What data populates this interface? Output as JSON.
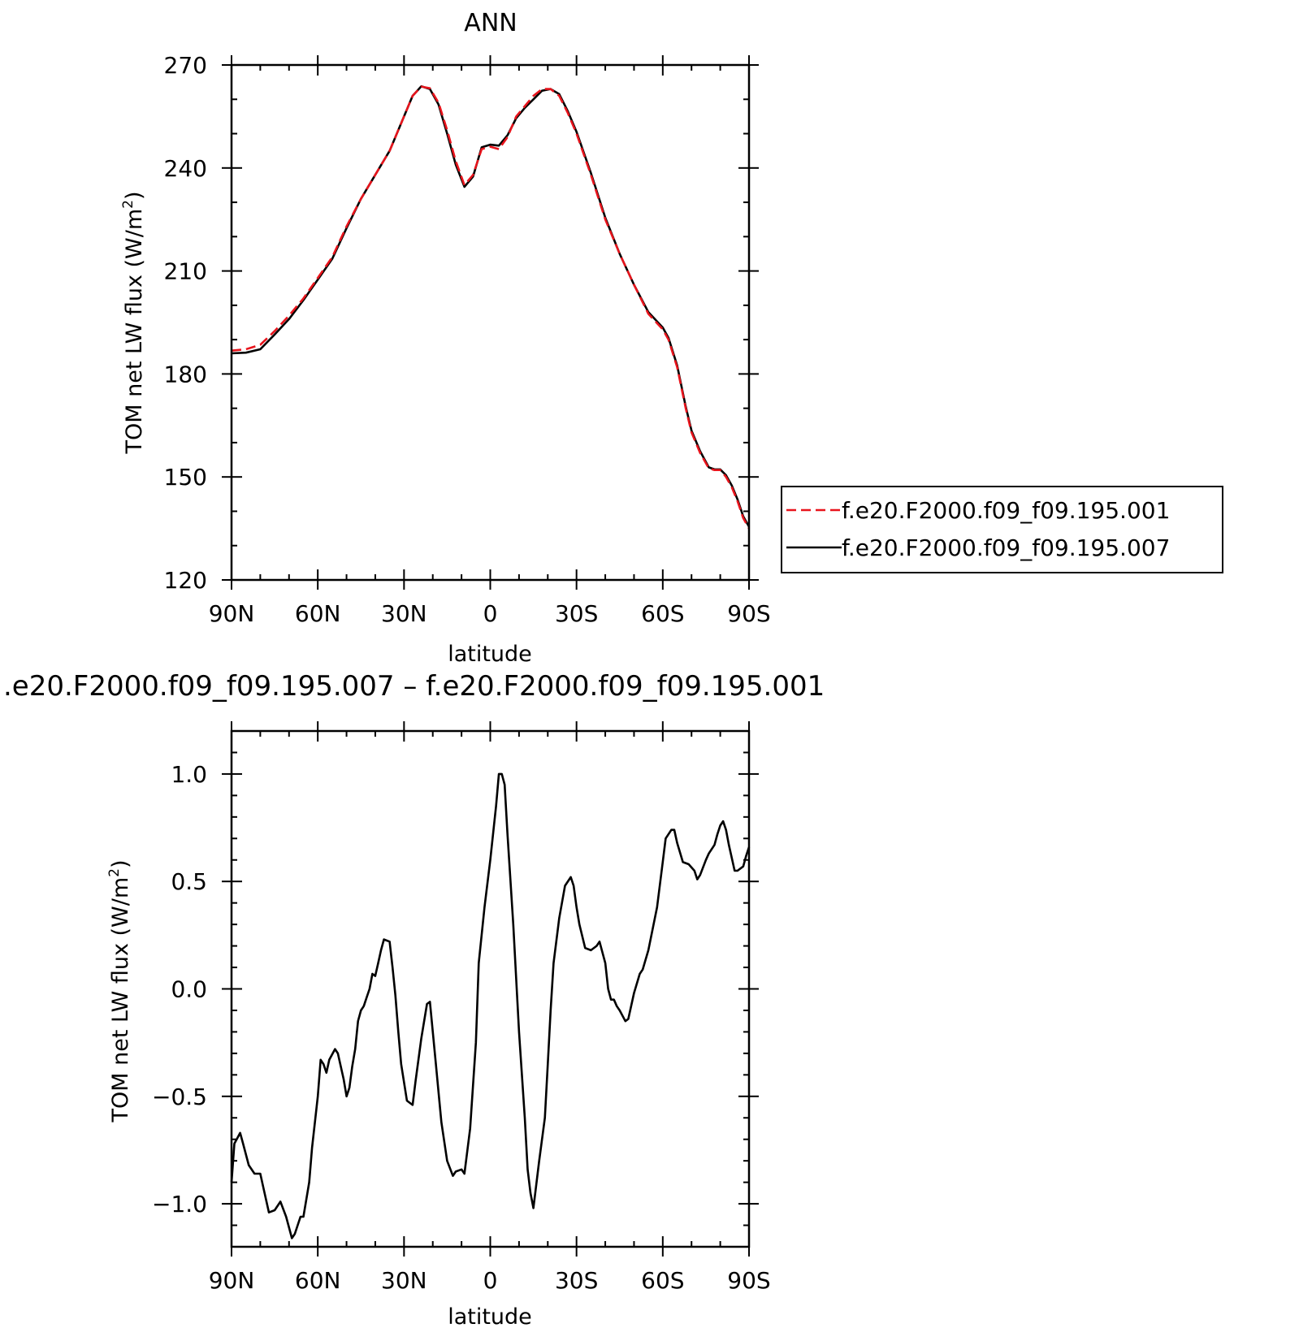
{
  "chart_data": [
    {
      "type": "line",
      "title": "ANN",
      "xlabel": "latitude",
      "ylabel": "TOM net LW flux (W/m",
      "ylabel_sup": "2",
      "ylabel_close": ")",
      "xlim": [
        90,
        -90
      ],
      "ylim": [
        120,
        270
      ],
      "xticks": [
        90,
        60,
        30,
        0,
        -30,
        -60,
        -90
      ],
      "xtick_labels": [
        "90N",
        "60N",
        "30N",
        "0",
        "30S",
        "60S",
        "90S"
      ],
      "yticks": [
        120,
        150,
        180,
        210,
        240,
        270
      ],
      "ytick_labels": [
        "120",
        "150",
        "180",
        "210",
        "240",
        "270"
      ],
      "legend_position": "right",
      "grid": false,
      "series": [
        {
          "name": "f.e20.F2000.f09_f09.195.001",
          "color": "#e8141c",
          "dash": true,
          "x": [
            90,
            85,
            80,
            75,
            70,
            65,
            60,
            55,
            50,
            45,
            40,
            35,
            30,
            27,
            24,
            21,
            18,
            15,
            12,
            9,
            6,
            3,
            0,
            -3,
            -6,
            -9,
            -12,
            -15,
            -18,
            -21,
            -24,
            -27,
            -30,
            -35,
            -40,
            -45,
            -50,
            -55,
            -60,
            -62,
            -65,
            -68,
            -70,
            -73,
            -76,
            -78,
            -80,
            -82,
            -84,
            -86,
            -88,
            -90
          ],
          "y": [
            186.8,
            187.2,
            188.5,
            192.5,
            197,
            202,
            208,
            214,
            223,
            231,
            238,
            245,
            255,
            261,
            263.7,
            263.2,
            259,
            251,
            242,
            235,
            238,
            245.5,
            246.2,
            245.5,
            249,
            255,
            258,
            261,
            263,
            263,
            261,
            256,
            250,
            238,
            225,
            215,
            206,
            197.5,
            193,
            190,
            182,
            170,
            163,
            157,
            152.5,
            152,
            152,
            150,
            147,
            143,
            138,
            135
          ]
        },
        {
          "name": "f.e20.F2000.f09_f09.195.007",
          "color": "#000000",
          "dash": false,
          "x": [
            90,
            85,
            80,
            75,
            70,
            65,
            60,
            55,
            50,
            45,
            40,
            35,
            30,
            27,
            24,
            21,
            18,
            15,
            12,
            9,
            6,
            3,
            0,
            -3,
            -6,
            -9,
            -12,
            -15,
            -18,
            -21,
            -24,
            -27,
            -30,
            -35,
            -40,
            -45,
            -50,
            -55,
            -60,
            -62,
            -65,
            -68,
            -70,
            -73,
            -76,
            -78,
            -80,
            -82,
            -84,
            -86,
            -88,
            -90
          ],
          "y": [
            186,
            186.2,
            187.2,
            191.5,
            196,
            201.5,
            207.5,
            213.5,
            222.5,
            231,
            238,
            245,
            255,
            261,
            263.8,
            263,
            258.5,
            250,
            241,
            234.5,
            237.5,
            246,
            246.8,
            246.5,
            249.5,
            254.5,
            257.5,
            260,
            262.5,
            263,
            261.5,
            256.5,
            250.5,
            238.5,
            225.5,
            215,
            206,
            198,
            193.5,
            190.5,
            182.5,
            170.5,
            163.5,
            157.5,
            152.8,
            152.2,
            152.2,
            150.5,
            147.5,
            143.5,
            138.5,
            135.5
          ]
        }
      ]
    },
    {
      "type": "line",
      "title": ".e20.F2000.f09_f09.195.007 – f.e20.F2000.f09_f09.195.001",
      "xlabel": "latitude",
      "ylabel": "TOM net LW flux (W/m",
      "ylabel_sup": "2",
      "ylabel_close": ")",
      "xlim": [
        90,
        -90
      ],
      "ylim": [
        -1.2,
        1.2
      ],
      "xticks": [
        90,
        60,
        30,
        0,
        -30,
        -60,
        -90
      ],
      "xtick_labels": [
        "90N",
        "60N",
        "30N",
        "0",
        "30S",
        "60S",
        "90S"
      ],
      "yticks": [
        -1.0,
        -0.5,
        0.0,
        0.5,
        1.0
      ],
      "ytick_labels": [
        "−1.0",
        "−0.5",
        "0.0",
        "0.5",
        "1.0"
      ],
      "grid": false,
      "series": [
        {
          "color": "#000000",
          "dash": false,
          "x": [
            90,
            89,
            87,
            86,
            84,
            82,
            80,
            79,
            77,
            75,
            73,
            71,
            69,
            68,
            66,
            65,
            63,
            62,
            60,
            59,
            58,
            57,
            56,
            54,
            53,
            51,
            50,
            49,
            48,
            47,
            46,
            45,
            44,
            43,
            42,
            41,
            40,
            39,
            38,
            37,
            35,
            34,
            33,
            32,
            31,
            29,
            27,
            26,
            24,
            22,
            21,
            19,
            17,
            15,
            13,
            12,
            10,
            9,
            7,
            5,
            4,
            2,
            0,
            -2,
            -3,
            -4,
            -5,
            -6,
            -8,
            -10,
            -12,
            -13,
            -14,
            -15,
            -17,
            -19,
            -20,
            -21,
            -22,
            -24,
            -26,
            -28,
            -29,
            -30,
            -31,
            -33,
            -35,
            -37,
            -38,
            -40,
            -41,
            -42,
            -43,
            -44,
            -45,
            -47,
            -48,
            -49,
            -50,
            -52,
            -53,
            -55,
            -58,
            -60,
            -61,
            -63,
            -64,
            -65,
            -67,
            -69,
            -71,
            -72,
            -73,
            -75,
            -76,
            -78,
            -79,
            -80,
            -81,
            -82,
            -83,
            -85,
            -86,
            -88,
            -89,
            -90
          ],
          "y": [
            -0.9,
            -0.72,
            -0.67,
            -0.72,
            -0.82,
            -0.86,
            -0.86,
            -0.92,
            -1.04,
            -1.03,
            -0.99,
            -1.06,
            -1.16,
            -1.14,
            -1.06,
            -1.06,
            -0.9,
            -0.74,
            -0.5,
            -0.33,
            -0.35,
            -0.39,
            -0.33,
            -0.28,
            -0.3,
            -0.42,
            -0.5,
            -0.46,
            -0.36,
            -0.28,
            -0.15,
            -0.1,
            -0.08,
            -0.04,
            0.0,
            0.07,
            0.06,
            0.12,
            0.18,
            0.23,
            0.22,
            0.1,
            -0.03,
            -0.2,
            -0.35,
            -0.52,
            -0.54,
            -0.43,
            -0.23,
            -0.07,
            -0.06,
            -0.34,
            -0.62,
            -0.8,
            -0.87,
            -0.85,
            -0.84,
            -0.86,
            -0.65,
            -0.25,
            0.12,
            0.38,
            0.6,
            0.85,
            1.0,
            1.0,
            0.95,
            0.72,
            0.3,
            -0.2,
            -0.6,
            -0.84,
            -0.95,
            -1.02,
            -0.8,
            -0.6,
            -0.35,
            -0.1,
            0.12,
            0.33,
            0.48,
            0.52,
            0.48,
            0.38,
            0.3,
            0.19,
            0.18,
            0.2,
            0.22,
            0.12,
            0.0,
            -0.05,
            -0.05,
            -0.08,
            -0.1,
            -0.15,
            -0.14,
            -0.08,
            -0.02,
            0.07,
            0.09,
            0.18,
            0.38,
            0.59,
            0.7,
            0.74,
            0.74,
            0.68,
            0.59,
            0.58,
            0.55,
            0.51,
            0.53,
            0.6,
            0.63,
            0.67,
            0.72,
            0.76,
            0.78,
            0.74,
            0.67,
            0.55,
            0.55,
            0.57,
            0.62,
            0.66
          ]
        }
      ]
    }
  ]
}
